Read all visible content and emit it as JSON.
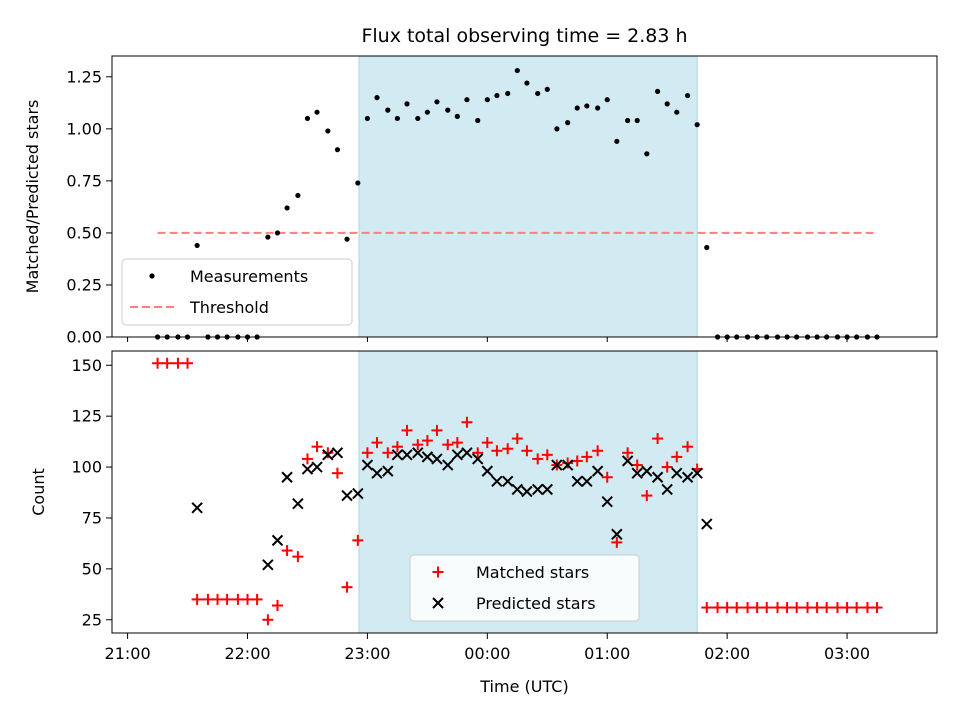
{
  "chart_data": [
    {
      "type": "scatter",
      "title": "Flux total observing time = 2.83 h",
      "xlabel": "",
      "ylabel": "Matched/Predicted stars",
      "ylim": [
        0,
        1.35
      ],
      "yticks": [
        "0.00",
        "0.25",
        "0.50",
        "0.75",
        "1.00",
        "1.25"
      ],
      "xlim_hours": [
        20.87,
        27.75
      ],
      "shaded_span_hours": [
        22.93,
        25.75
      ],
      "shade_color": "#add8e6",
      "legend_position": "lower-left",
      "series": [
        {
          "name": "Measurements",
          "color": "#000000",
          "marker": "dot",
          "x_hours": [
            21.25,
            21.33,
            21.42,
            21.5,
            21.58,
            21.67,
            21.75,
            21.83,
            21.92,
            22.0,
            22.08,
            22.17,
            22.25,
            22.33,
            22.42,
            22.5,
            22.58,
            22.67,
            22.75,
            22.83,
            22.92,
            23.0,
            23.08,
            23.17,
            23.25,
            23.33,
            23.42,
            23.5,
            23.58,
            23.67,
            23.75,
            23.83,
            23.92,
            24.0,
            24.08,
            24.17,
            24.25,
            24.33,
            24.42,
            24.5,
            24.58,
            24.67,
            24.75,
            24.83,
            24.92,
            25.0,
            25.08,
            25.17,
            25.25,
            25.33,
            25.42,
            25.5,
            25.58,
            25.67,
            25.75,
            25.83,
            25.92,
            26.0,
            26.08,
            26.17,
            26.25,
            26.33,
            26.42,
            26.5,
            26.58,
            26.67,
            26.75,
            26.83,
            26.92,
            27.0,
            27.08,
            27.17,
            27.25
          ],
          "y": [
            0,
            0,
            0,
            0,
            0.44,
            0,
            0,
            0,
            0,
            0,
            0,
            0.48,
            0.5,
            0.62,
            0.68,
            1.05,
            1.08,
            0.99,
            0.9,
            0.47,
            0.74,
            1.05,
            1.15,
            1.09,
            1.05,
            1.12,
            1.05,
            1.08,
            1.13,
            1.09,
            1.06,
            1.14,
            1.04,
            1.14,
            1.16,
            1.17,
            1.28,
            1.22,
            1.17,
            1.19,
            1.0,
            1.03,
            1.1,
            1.11,
            1.1,
            1.14,
            0.94,
            1.04,
            1.04,
            0.88,
            1.18,
            1.12,
            1.08,
            1.16,
            1.02,
            0.43,
            0,
            0,
            0,
            0,
            0,
            0,
            0,
            0,
            0,
            0,
            0,
            0,
            0,
            0,
            0,
            0,
            0
          ]
        },
        {
          "name": "Threshold",
          "color": "#ff7f7f",
          "linestyle": "dashed",
          "x_hours": [
            21.25,
            27.25
          ],
          "y": [
            0.5,
            0.5
          ]
        }
      ]
    },
    {
      "type": "scatter",
      "title": "",
      "xlabel": "Time (UTC)",
      "ylabel": "Count",
      "ylim": [
        18.5,
        157
      ],
      "yticks": [
        "25",
        "50",
        "75",
        "100",
        "125",
        "150"
      ],
      "xlim_hours": [
        20.87,
        27.75
      ],
      "xtick_hours": [
        21,
        22,
        23,
        24,
        25,
        26,
        27
      ],
      "xticks": [
        "21:00",
        "22:00",
        "23:00",
        "00:00",
        "01:00",
        "02:00",
        "03:00"
      ],
      "shaded_span_hours": [
        22.93,
        25.75
      ],
      "shade_color": "#add8e6",
      "legend_position": "lower-center",
      "series": [
        {
          "name": "Matched stars",
          "color": "#ff0000",
          "marker": "plus",
          "x_hours": [
            21.25,
            21.33,
            21.42,
            21.5,
            21.58,
            21.67,
            21.75,
            21.83,
            21.92,
            22.0,
            22.08,
            22.17,
            22.25,
            22.33,
            22.42,
            22.5,
            22.58,
            22.67,
            22.75,
            22.83,
            22.92,
            23.0,
            23.08,
            23.17,
            23.25,
            23.33,
            23.42,
            23.5,
            23.58,
            23.67,
            23.75,
            23.83,
            23.92,
            24.0,
            24.08,
            24.17,
            24.25,
            24.33,
            24.42,
            24.5,
            24.58,
            24.67,
            24.75,
            24.83,
            24.92,
            25.0,
            25.08,
            25.17,
            25.25,
            25.33,
            25.42,
            25.5,
            25.58,
            25.67,
            25.75,
            25.83,
            25.92,
            26.0,
            26.08,
            26.17,
            26.25,
            26.33,
            26.42,
            26.5,
            26.58,
            26.67,
            26.75,
            26.83,
            26.92,
            27.0,
            27.08,
            27.17,
            27.25
          ],
          "y": [
            151,
            151,
            151,
            151,
            35,
            35,
            35,
            35,
            35,
            35,
            35,
            25,
            32,
            59,
            56,
            104,
            110,
            107,
            97,
            41,
            64,
            107,
            112,
            107,
            110,
            118,
            111,
            113,
            118,
            111,
            112,
            122,
            107,
            112,
            108,
            109,
            114,
            108,
            104,
            106,
            101,
            102,
            103,
            105,
            108,
            95,
            63,
            107,
            101,
            86,
            114,
            100,
            105,
            110,
            99,
            31,
            31,
            31,
            31,
            31,
            31,
            31,
            31,
            31,
            31,
            31,
            31,
            31,
            31,
            31,
            31,
            31,
            31
          ]
        },
        {
          "name": "Predicted stars",
          "color": "#000000",
          "marker": "x",
          "x_hours": [
            21.58,
            22.17,
            22.25,
            22.33,
            22.42,
            22.5,
            22.58,
            22.67,
            22.75,
            22.83,
            22.92,
            23.0,
            23.08,
            23.17,
            23.25,
            23.33,
            23.42,
            23.5,
            23.58,
            23.67,
            23.75,
            23.83,
            23.92,
            24.0,
            24.08,
            24.17,
            24.25,
            24.33,
            24.42,
            24.5,
            24.58,
            24.67,
            24.75,
            24.83,
            24.92,
            25.0,
            25.08,
            25.17,
            25.25,
            25.33,
            25.42,
            25.5,
            25.58,
            25.67,
            25.75,
            25.83
          ],
          "y": [
            80,
            52,
            64,
            95,
            82,
            99,
            100,
            106,
            107,
            86,
            87,
            101,
            97,
            98,
            106,
            106,
            107,
            105,
            104,
            101,
            106,
            107,
            104,
            98,
            93,
            93,
            89,
            88,
            89,
            89,
            101,
            101,
            93,
            93,
            98,
            83,
            67,
            103,
            97,
            98,
            95,
            89,
            97,
            95,
            97,
            72
          ]
        }
      ]
    }
  ]
}
